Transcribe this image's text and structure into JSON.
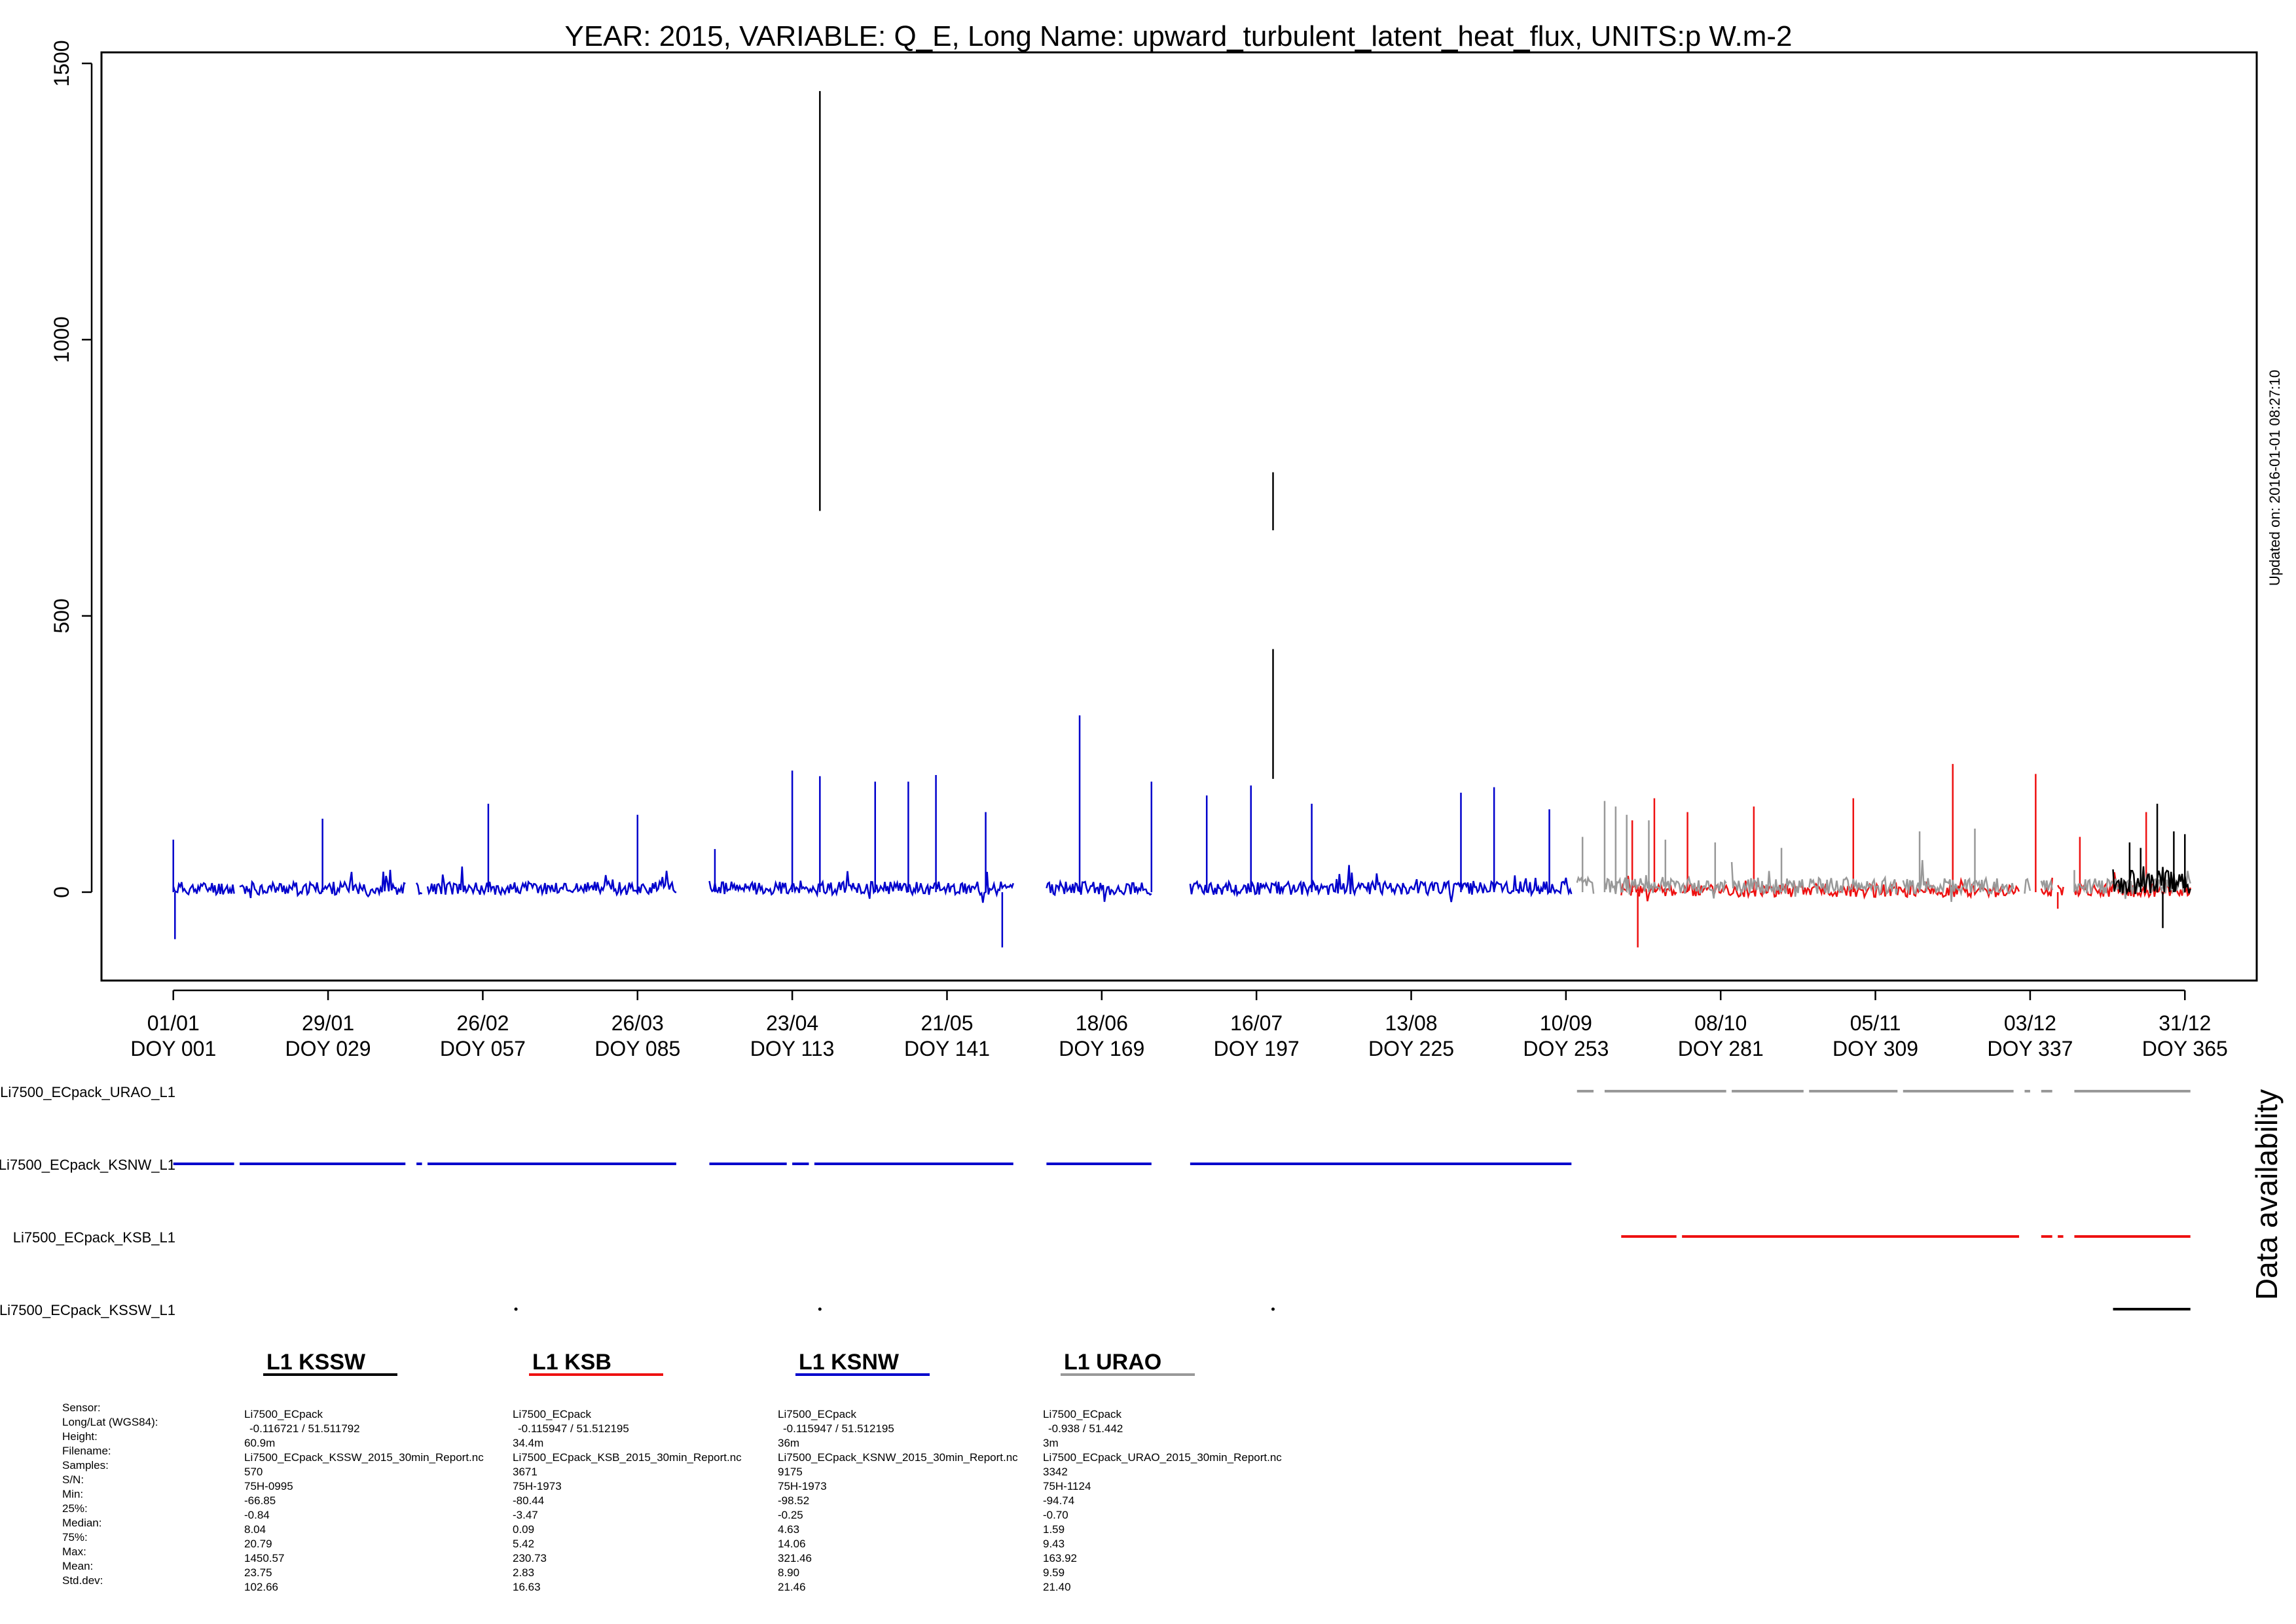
{
  "chart_data": {
    "type": "line",
    "title": "YEAR: 2015, VARIABLE: Q_E, Long Name: upward_turbulent_latent_heat_flux, UNITS:p W.m-2",
    "ylim": [
      -160,
      1520
    ],
    "yticks": [
      0,
      500,
      1000,
      1500
    ],
    "xlim_doy": [
      -12,
      378
    ],
    "x_ticks": [
      {
        "doy": 1,
        "date": "01/01",
        "label": "DOY 001"
      },
      {
        "doy": 29,
        "date": "29/01",
        "label": "DOY 029"
      },
      {
        "doy": 57,
        "date": "26/02",
        "label": "DOY 057"
      },
      {
        "doy": 85,
        "date": "26/03",
        "label": "DOY 085"
      },
      {
        "doy": 113,
        "date": "23/04",
        "label": "DOY 113"
      },
      {
        "doy": 141,
        "date": "21/05",
        "label": "DOY 141"
      },
      {
        "doy": 169,
        "date": "18/06",
        "label": "DOY 169"
      },
      {
        "doy": 197,
        "date": "16/07",
        "label": "DOY 197"
      },
      {
        "doy": 225,
        "date": "13/08",
        "label": "DOY 225"
      },
      {
        "doy": 253,
        "date": "10/09",
        "label": "DOY 253"
      },
      {
        "doy": 281,
        "date": "08/10",
        "label": "DOY 281"
      },
      {
        "doy": 309,
        "date": "05/11",
        "label": "DOY 309"
      },
      {
        "doy": 337,
        "date": "03/12",
        "label": "DOY 337"
      },
      {
        "doy": 365,
        "date": "31/12",
        "label": "DOY 365"
      }
    ],
    "updated_text": "Updated on: 2016-01-01 08:27:10",
    "availability_label": "Data availability",
    "series": [
      {
        "name": "L1 KSNW",
        "color": "#0000cc",
        "seed": 11,
        "segments": [
          [
            1,
            12
          ],
          [
            13,
            43
          ],
          [
            45,
            46
          ],
          [
            47,
            92
          ],
          [
            98,
            153
          ],
          [
            159,
            178
          ],
          [
            185,
            254
          ]
        ],
        "base": 6,
        "noise": 12,
        "spikes": [
          [
            1,
            95
          ],
          [
            1.3,
            -85
          ],
          [
            28,
            133
          ],
          [
            58,
            160
          ],
          [
            85,
            140
          ],
          [
            99,
            78
          ],
          [
            113,
            220
          ],
          [
            118,
            210
          ],
          [
            128,
            200
          ],
          [
            134,
            200
          ],
          [
            139,
            212
          ],
          [
            148,
            145
          ],
          [
            151,
            -100
          ],
          [
            165,
            320
          ],
          [
            178,
            200
          ],
          [
            188,
            175
          ],
          [
            196,
            193
          ],
          [
            207,
            160
          ],
          [
            234,
            180
          ],
          [
            240,
            190
          ],
          [
            250,
            150
          ]
        ]
      },
      {
        "name": "L1 KSB",
        "color": "#ee1111",
        "seed": 23,
        "segments": [
          [
            263,
            273
          ],
          [
            274,
            335
          ],
          [
            339,
            341
          ],
          [
            342,
            343
          ],
          [
            345,
            366
          ]
        ],
        "base": 2,
        "noise": 12,
        "spikes": [
          [
            265,
            130
          ],
          [
            266,
            -100
          ],
          [
            269,
            170
          ],
          [
            275,
            145
          ],
          [
            287,
            155
          ],
          [
            305,
            170
          ],
          [
            323,
            232
          ],
          [
            338,
            214
          ],
          [
            342,
            -30
          ],
          [
            346,
            100
          ],
          [
            358,
            145
          ]
        ]
      },
      {
        "name": "L1 URAO",
        "color": "#999999",
        "seed": 37,
        "segments": [
          [
            255,
            258
          ],
          [
            260,
            282
          ],
          [
            283,
            296
          ],
          [
            297,
            313
          ],
          [
            314,
            334
          ],
          [
            336,
            337
          ],
          [
            339,
            341
          ],
          [
            345,
            366
          ]
        ],
        "base": 10,
        "noise": 15,
        "spikes": [
          [
            256,
            100
          ],
          [
            260,
            165
          ],
          [
            262,
            155
          ],
          [
            264,
            140
          ],
          [
            268,
            130
          ],
          [
            271,
            95
          ],
          [
            280,
            90
          ],
          [
            292,
            80
          ],
          [
            317,
            110
          ],
          [
            327,
            115
          ],
          [
            345,
            40
          ]
        ]
      },
      {
        "name": "L1 KSSW",
        "color": "#000000",
        "seed": 53,
        "segments": [
          [
            352,
            366
          ]
        ],
        "base": 15,
        "noise": 22,
        "spikes": [
          [
            355,
            90
          ],
          [
            357,
            80
          ],
          [
            360,
            160
          ],
          [
            363,
            110
          ],
          [
            365,
            105
          ],
          [
            361,
            -65
          ]
        ],
        "verticals": [
          [
            118,
            690,
            1450
          ],
          [
            200,
            655,
            760
          ],
          [
            200,
            205,
            440
          ]
        ]
      }
    ],
    "availability": [
      {
        "label": "Li7500_ECpack_URAO_L1",
        "color": "#999999",
        "segments": [
          [
            255,
            258
          ],
          [
            260,
            282
          ],
          [
            283,
            296
          ],
          [
            297,
            313
          ],
          [
            314,
            334
          ],
          [
            336,
            337
          ],
          [
            339,
            341
          ],
          [
            345,
            366
          ]
        ]
      },
      {
        "label": "Li7500_ECpack_KSNW_L1",
        "color": "#0000cc",
        "segments": [
          [
            1,
            12
          ],
          [
            13,
            43
          ],
          [
            45,
            46
          ],
          [
            47,
            92
          ],
          [
            98,
            112
          ],
          [
            113,
            116
          ],
          [
            117,
            153
          ],
          [
            159,
            178
          ],
          [
            185,
            254
          ]
        ]
      },
      {
        "label": "Li7500_ECpack_KSB_L1",
        "color": "#ee1111",
        "segments": [
          [
            263,
            273
          ],
          [
            274,
            335
          ],
          [
            339,
            341
          ],
          [
            342,
            343
          ],
          [
            345,
            366
          ]
        ]
      },
      {
        "label": "Li7500_ECpack_KSSW_L1",
        "color": "#000000",
        "segments": [
          [
            352,
            366
          ]
        ],
        "dots": [
          63,
          118,
          200
        ]
      }
    ]
  },
  "legend": [
    {
      "label": "L1 KSSW",
      "color": "#000000"
    },
    {
      "label": "L1 KSB",
      "color": "#ee1111"
    },
    {
      "label": "L1 KSNW",
      "color": "#0000cc"
    },
    {
      "label": "L1 URAO",
      "color": "#999999"
    }
  ],
  "stats": {
    "row_labels": [
      "Sensor:",
      "Long/Lat (WGS84):",
      "Height:",
      "Filename:",
      "Samples:",
      "S/N:",
      "Min:",
      "25%:",
      "Median:",
      "75%:",
      "Max:",
      "Mean:",
      "Std.dev:"
    ],
    "columns": [
      {
        "sensor": "Li7500_ECpack",
        "longlat": "-0.116721 / 51.511792",
        "height": "60.9m",
        "filename": "Li7500_ECpack_KSSW_2015_30min_Report.nc",
        "samples": "570",
        "sn": "75H-0995",
        "min": "-66.85",
        "p25": "-0.84",
        "median": "8.04",
        "p75": "20.79",
        "max": "1450.57",
        "mean": "23.75",
        "std": "102.66"
      },
      {
        "sensor": "Li7500_ECpack",
        "longlat": "-0.115947 / 51.512195",
        "height": "34.4m",
        "filename": "Li7500_ECpack_KSB_2015_30min_Report.nc",
        "samples": "3671",
        "sn": "75H-1973",
        "min": "-80.44",
        "p25": "-3.47",
        "median": "0.09",
        "p75": "5.42",
        "max": "230.73",
        "mean": "2.83",
        "std": "16.63"
      },
      {
        "sensor": "Li7500_ECpack",
        "longlat": "-0.115947 / 51.512195",
        "height": "36m",
        "filename": "Li7500_ECpack_KSNW_2015_30min_Report.nc",
        "samples": "9175",
        "sn": "75H-1973",
        "min": "-98.52",
        "p25": "-0.25",
        "median": "4.63",
        "p75": "14.06",
        "max": "321.46",
        "mean": "8.90",
        "std": "21.46"
      },
      {
        "sensor": "Li7500_ECpack",
        "longlat": "-0.938 / 51.442",
        "height": "3m",
        "filename": "Li7500_ECpack_URAO_2015_30min_Report.nc",
        "samples": "3342",
        "sn": "75H-1124",
        "min": "-94.74",
        "p25": "-0.70",
        "median": "1.59",
        "p75": "9.43",
        "max": "163.92",
        "mean": "9.59",
        "std": "21.40"
      }
    ]
  }
}
